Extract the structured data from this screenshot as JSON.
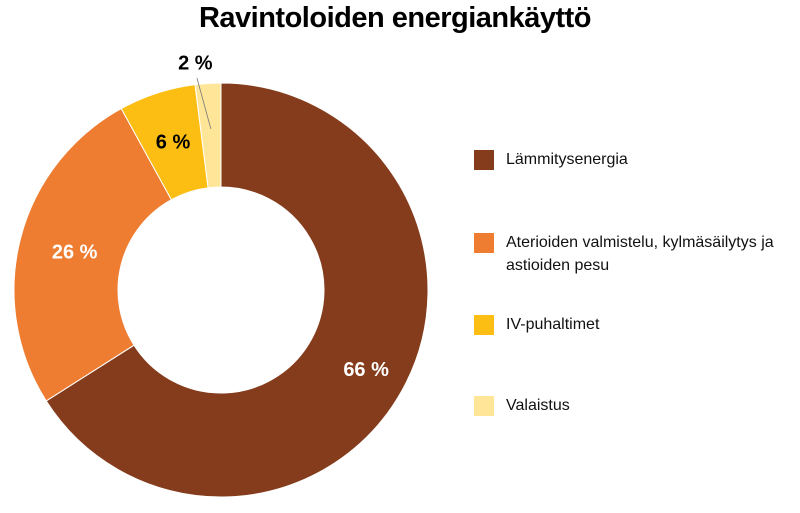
{
  "chart_data": {
    "type": "pie",
    "title": "Ravintoloiden energiankäyttö",
    "donut": true,
    "legend_position": "right",
    "slices": [
      {
        "label": "Lämmitysenergia",
        "value": 66,
        "value_label": "66 %",
        "color": "#843c1c",
        "label_color": "#ffffff"
      },
      {
        "label": "Aterioiden valmistelu, kylmäsäilytys ja astioiden pesu",
        "value": 26,
        "value_label": "26 %",
        "color": "#ee7d31",
        "label_color": "#ffffff"
      },
      {
        "label": "IV-puhaltimet",
        "value": 6,
        "value_label": "6 %",
        "color": "#fcbe13",
        "label_color": "#000000"
      },
      {
        "label": "Valaistus",
        "value": 2,
        "value_label": "2 %",
        "color": "#fee598",
        "label_color": "#000000"
      }
    ]
  }
}
